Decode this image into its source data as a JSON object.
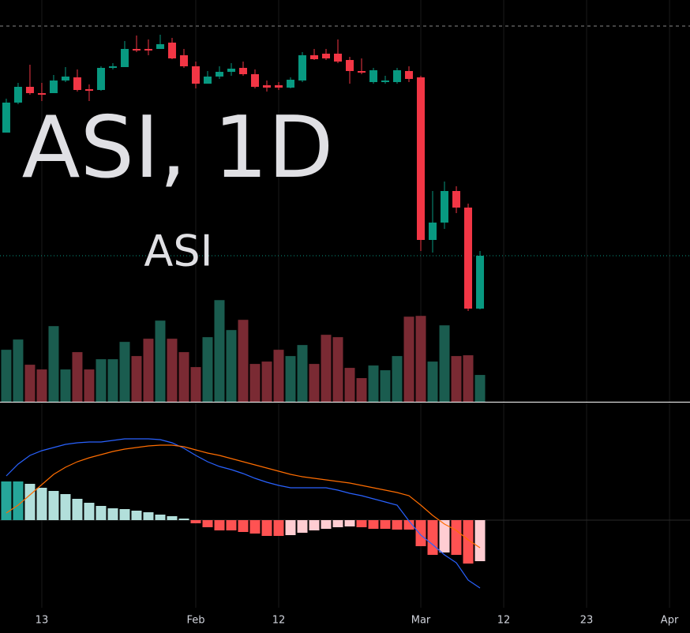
{
  "chart_data": {
    "type": "candlestick",
    "title": "ASI, 1D",
    "subtitle": "ASI",
    "open": [
      342,
      380,
      400,
      392,
      392,
      408,
      412,
      397,
      396,
      424,
      425,
      448,
      448,
      448,
      456,
      440,
      426,
      404,
      413,
      419,
      424,
      416,
      402,
      402,
      399,
      408,
      440,
      442,
      442,
      434,
      420,
      406,
      406,
      406,
      420,
      412,
      206,
      228,
      268,
      247,
      119
    ],
    "close": [
      380,
      400,
      392,
      390,
      408,
      413,
      396,
      395,
      424,
      426,
      448,
      446,
      446,
      454,
      436,
      426,
      404,
      413,
      419,
      423,
      416,
      400,
      399,
      399,
      409,
      440,
      435,
      436,
      432,
      420,
      418,
      421,
      408,
      421,
      410,
      206,
      228,
      268,
      247,
      119,
      186
    ],
    "high": [
      385,
      405,
      428,
      405,
      415,
      425,
      422,
      403,
      426,
      430,
      458,
      465,
      460,
      466,
      462,
      448,
      432,
      420,
      426,
      430,
      432,
      422,
      408,
      406,
      412,
      444,
      448,
      448,
      460,
      438,
      436,
      424,
      414,
      424,
      426,
      414,
      268,
      280,
      274,
      252,
      192
    ],
    "low": [
      342,
      378,
      390,
      382,
      392,
      406,
      394,
      382,
      395,
      422,
      425,
      444,
      440,
      448,
      435,
      424,
      398,
      404,
      410,
      414,
      414,
      398,
      394,
      396,
      398,
      406,
      434,
      434,
      430,
      404,
      416,
      404,
      404,
      404,
      406,
      192,
      190,
      220,
      240,
      116,
      118
    ],
    "volume": [
      66,
      79,
      47,
      41,
      96,
      41,
      63,
      41,
      54,
      54,
      76,
      58,
      80,
      103,
      80,
      63,
      44,
      82,
      129,
      91,
      104,
      48,
      51,
      66,
      58,
      72,
      48,
      85,
      82,
      43,
      30,
      46,
      40,
      58,
      108,
      109,
      51,
      97,
      58,
      59,
      34
    ],
    "macd": [
      56,
      71,
      82,
      88,
      92,
      96,
      98,
      99,
      99,
      101,
      103,
      103,
      103,
      102,
      98,
      91,
      82,
      74,
      68,
      64,
      59,
      53,
      48,
      44,
      41,
      41,
      41,
      41,
      38,
      34,
      31,
      27,
      23,
      19,
      -1,
      -19,
      -31,
      -44,
      -54,
      -76,
      -86
    ],
    "signal": [
      9,
      19,
      32,
      45,
      58,
      67,
      74,
      79,
      83,
      87,
      90,
      92,
      94,
      95,
      95,
      93,
      89,
      85,
      82,
      78,
      74,
      70,
      66,
      62,
      58,
      55,
      53,
      51,
      49,
      47,
      44,
      41,
      38,
      35,
      31,
      19,
      6,
      -5,
      -13,
      -25,
      -35
    ],
    "histogram": [
      49,
      49,
      46,
      41,
      37,
      33,
      27,
      22,
      18,
      15,
      14,
      12,
      10,
      7,
      5,
      2,
      -4,
      -9,
      -13,
      -13,
      -15,
      -17,
      -20,
      -20,
      -19,
      -16,
      -13,
      -11,
      -9,
      -8,
      -9,
      -11,
      -11,
      -12,
      -12,
      -33,
      -44,
      -41,
      -44,
      -55,
      -52
    ],
    "xticks": [
      {
        "value": 3,
        "label": "13"
      },
      {
        "value": 16,
        "label": "Feb"
      },
      {
        "value": 23,
        "label": "12"
      },
      {
        "value": 35,
        "label": "Mar"
      },
      {
        "value": 42,
        "label": "12"
      },
      {
        "value": 49,
        "label": "23"
      },
      {
        "value": 56,
        "label": "Apr"
      }
    ],
    "xlim": [
      -0.53,
      57.73
    ],
    "ylim": [
      0,
      510
    ],
    "volume_ylim": [
      0,
      510
    ],
    "macd_ylim": [
      -111,
      149
    ],
    "high_line": 477,
    "grid": true,
    "up_color": "#089981",
    "down_color": "#f23645",
    "volume_up_color": "#1a5c4f",
    "volume_down_color": "#7a2a33",
    "macd_color": "#2962ff",
    "signal_color": "#ff6d00",
    "hist_colors": [
      "#26a69a",
      "#b2dfdb",
      "#ff5252",
      "#ffcdd2"
    ]
  }
}
